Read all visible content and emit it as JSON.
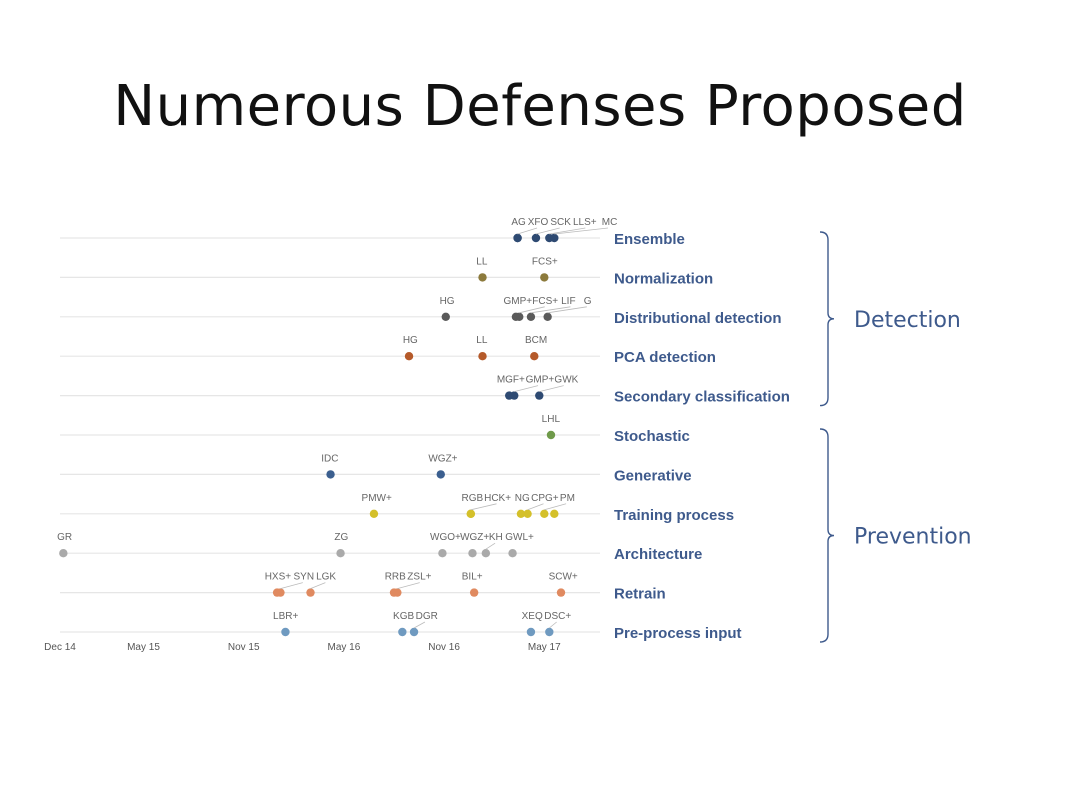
{
  "slide": {
    "title": "Numerous Defenses Proposed"
  },
  "chart_data": {
    "type": "scatter",
    "title": "",
    "x_axis": {
      "unit": "months since Dec 14",
      "range": [
        0,
        29.5
      ],
      "ticks": [
        {
          "label": "Dec 14",
          "value": 0
        },
        {
          "label": "May 15",
          "value": 5
        },
        {
          "label": "Nov 15",
          "value": 11
        },
        {
          "label": "May 16",
          "value": 17
        },
        {
          "label": "Nov 16",
          "value": 23
        },
        {
          "label": "May 17",
          "value": 29
        }
      ]
    },
    "rows": [
      {
        "name": "Ensemble",
        "color": "#2e4a72",
        "points": [
          {
            "label": "AG",
            "x": 27.4
          },
          {
            "label": "XFO",
            "x": 27.4
          },
          {
            "label": "SCK",
            "x": 28.5
          },
          {
            "label": "LLS+",
            "x": 29.3
          },
          {
            "label": "MC",
            "x": 29.6
          }
        ]
      },
      {
        "name": "Normalization",
        "color": "#8c7a3c",
        "points": [
          {
            "label": "LL",
            "x": 25.3
          },
          {
            "label": "FCS+",
            "x": 29.0
          }
        ]
      },
      {
        "name": "Distributional detection",
        "color": "#5a5a5a",
        "points": [
          {
            "label": "HG",
            "x": 23.1
          },
          {
            "label": "GMP+",
            "x": 27.3
          },
          {
            "label": "FCS+",
            "x": 27.5
          },
          {
            "label": "LIF",
            "x": 28.2
          },
          {
            "label": "G",
            "x": 29.2
          }
        ]
      },
      {
        "name": "PCA detection",
        "color": "#b55a2a",
        "points": [
          {
            "label": "HG",
            "x": 20.9
          },
          {
            "label": "LL",
            "x": 25.3
          },
          {
            "label": "BCM",
            "x": 28.4
          }
        ]
      },
      {
        "name": "Secondary classification",
        "color": "#2e4a72",
        "points": [
          {
            "label": "MGF+",
            "x": 26.9
          },
          {
            "label": "GMP+",
            "x": 27.2
          },
          {
            "label": "GWK",
            "x": 28.7
          }
        ]
      },
      {
        "name": "Stochastic",
        "color": "#6f9a4a",
        "points": [
          {
            "label": "LHL",
            "x": 29.4
          }
        ]
      },
      {
        "name": "Generative",
        "color": "#3b5f8f",
        "points": [
          {
            "label": "IDC",
            "x": 16.2
          },
          {
            "label": "WGZ+",
            "x": 22.8
          }
        ]
      },
      {
        "name": "Training process",
        "color": "#d4c02a",
        "points": [
          {
            "label": "PMW+",
            "x": 18.8
          },
          {
            "label": "RGB",
            "x": 24.6
          },
          {
            "label": "HCK+",
            "x": 24.6
          },
          {
            "label": "NG",
            "x": 27.6
          },
          {
            "label": "CPG+",
            "x": 28.0
          },
          {
            "label": "PM",
            "x": 29.0
          },
          {
            "label": "",
            "x": 29.6
          }
        ]
      },
      {
        "name": "Architecture",
        "color": "#aaaaaa",
        "points": [
          {
            "label": "GR",
            "x": 0.2
          },
          {
            "label": "ZG",
            "x": 16.8
          },
          {
            "label": "WGO+",
            "x": 22.9
          },
          {
            "label": "WGZ+",
            "x": 24.7
          },
          {
            "label": "KH",
            "x": 25.5
          },
          {
            "label": "GWL+",
            "x": 27.1
          }
        ]
      },
      {
        "name": "Retrain",
        "color": "#e08a60",
        "points": [
          {
            "label": "HXS+",
            "x": 13.0
          },
          {
            "label": "SYN",
            "x": 13.2
          },
          {
            "label": "LGK",
            "x": 15.0
          },
          {
            "label": "RRB",
            "x": 20.0
          },
          {
            "label": "ZSL+",
            "x": 20.2
          },
          {
            "label": "BIL+",
            "x": 24.8
          },
          {
            "label": "SCW+",
            "x": 30.0
          }
        ]
      },
      {
        "name": "Pre-process input",
        "color": "#6f9ac0",
        "points": [
          {
            "label": "LBR+",
            "x": 13.5
          },
          {
            "label": "KGB",
            "x": 20.5
          },
          {
            "label": "DGR",
            "x": 21.2
          },
          {
            "label": "XEQ",
            "x": 28.2
          },
          {
            "label": "DSC+",
            "x": 29.3
          }
        ]
      }
    ],
    "groups": [
      {
        "name": "Detection",
        "rows": [
          "Ensemble",
          "Normalization",
          "Distributional detection",
          "PCA detection",
          "Secondary classification"
        ]
      },
      {
        "name": "Prevention",
        "rows": [
          "Stochastic",
          "Generative",
          "Training process",
          "Architecture",
          "Retrain",
          "Pre-process input"
        ]
      }
    ],
    "grid": false,
    "legend": "none"
  }
}
